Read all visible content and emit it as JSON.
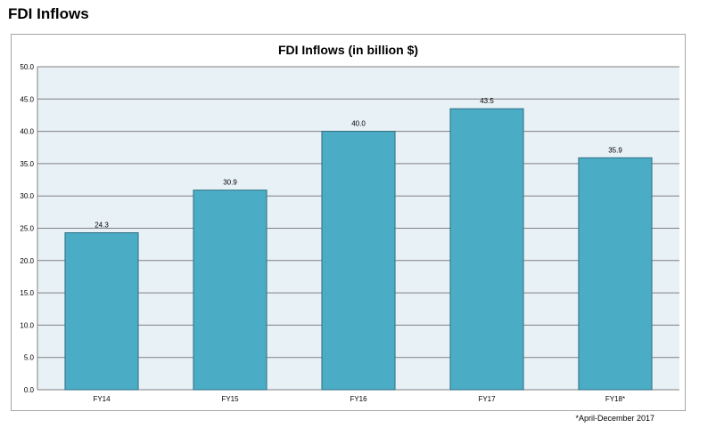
{
  "page": {
    "heading": "FDI Inflows",
    "footnote": "*April-December 2017"
  },
  "chart_data": {
    "type": "bar",
    "title": "FDI Inflows (in billion $)",
    "categories": [
      "FY14",
      "FY15",
      "FY16",
      "FY17",
      "FY18*"
    ],
    "values": [
      24.3,
      30.9,
      40.0,
      43.5,
      35.9
    ],
    "data_labels": [
      "24.3",
      "30.9",
      "40.0",
      "43.5",
      "35.9"
    ],
    "xlabel": "",
    "ylabel": "",
    "ylim": [
      0,
      50
    ],
    "yticks": [
      "0.0",
      "5.0",
      "10.0",
      "15.0",
      "20.0",
      "25.0",
      "30.0",
      "35.0",
      "40.0",
      "45.0",
      "50.0"
    ],
    "grid": true,
    "legend": "none",
    "colors": {
      "bar": "#4bacc6",
      "bar_edge": "#2d6f80",
      "plot_bg": "#e8f1f6",
      "grid": "#808080"
    }
  }
}
